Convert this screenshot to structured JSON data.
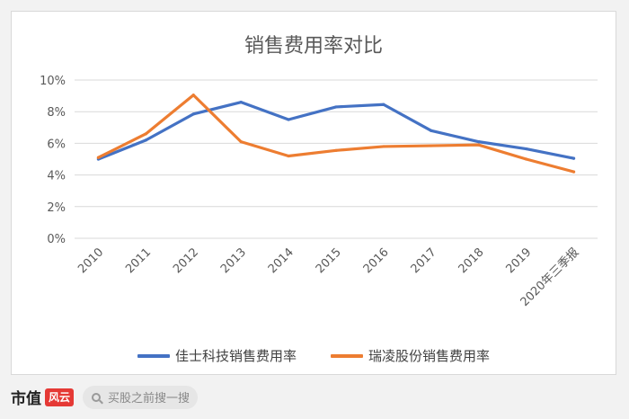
{
  "chart_data": {
    "type": "line",
    "title": "销售费用率对比",
    "categories": [
      "2010",
      "2011",
      "2012",
      "2013",
      "2014",
      "2015",
      "2016",
      "2017",
      "2018",
      "2019",
      "2020年三季报"
    ],
    "y_tick_labels": [
      "0%",
      "2%",
      "4%",
      "6%",
      "8%",
      "10%"
    ],
    "ylim": [
      0,
      10
    ],
    "y_unit": "%",
    "grid": true,
    "legend_position": "bottom",
    "series": [
      {
        "name": "佳士科技销售费用率",
        "color": "#4472c4",
        "values": [
          5.0,
          6.2,
          7.85,
          8.6,
          7.5,
          8.3,
          8.45,
          6.8,
          6.1,
          5.65,
          5.05
        ]
      },
      {
        "name": "瑞凌股份销售费用率",
        "color": "#ed7d31",
        "values": [
          5.1,
          6.6,
          9.05,
          6.1,
          5.2,
          5.55,
          5.8,
          5.85,
          5.9,
          5.0,
          4.2
        ]
      }
    ]
  },
  "footer": {
    "brand_text": "市值",
    "brand_logo_text": "风云",
    "search_placeholder": "买股之前搜一搜",
    "search_icon": "search-icon"
  }
}
